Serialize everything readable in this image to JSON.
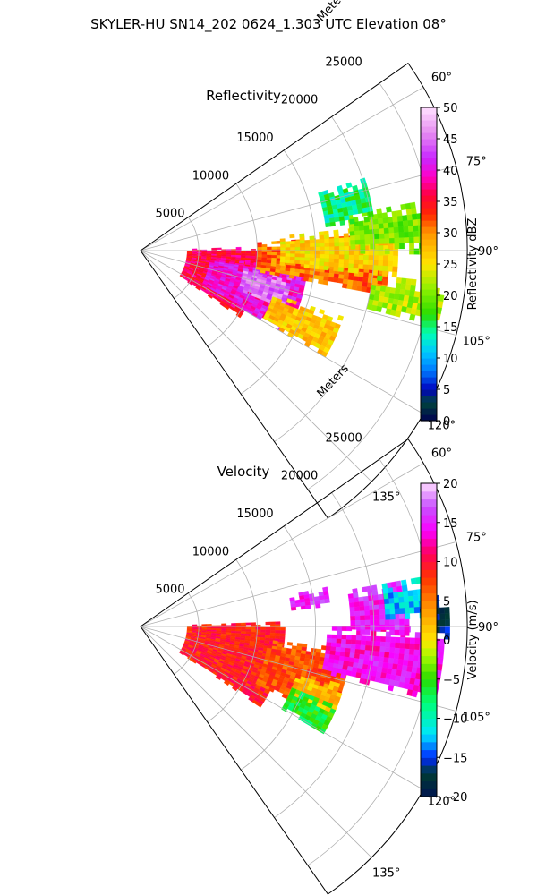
{
  "figure": {
    "suptitle": "SKYLER-HU  SN14_202  0624_1.303 UTC Elevation 08°"
  },
  "chart_data": [
    {
      "type": "heatmap",
      "title": "Reflectivity",
      "radial_label": "Meters",
      "projection": "polar sector",
      "theta_range_deg": [
        55,
        145
      ],
      "r_range_m": [
        0,
        28000
      ],
      "r_ticks": [
        5000,
        10000,
        15000,
        20000,
        25000
      ],
      "theta_ticks_deg": [
        60,
        75,
        90,
        105,
        120,
        135
      ],
      "theta_tick_labels": [
        "60°",
        "75°",
        "90°",
        "105°",
        "120°",
        "135°"
      ],
      "r_tick_labels": [
        "5000",
        "10000",
        "15000",
        "20000",
        "25000"
      ],
      "grid": true,
      "colorbar": {
        "label": "Reflectivity dBZ",
        "range": [
          0,
          50
        ],
        "ticks": [
          0,
          5,
          10,
          15,
          20,
          25,
          30,
          35,
          40,
          45,
          50
        ],
        "tick_labels": [
          "0",
          "5",
          "10",
          "15",
          "20",
          "25",
          "30",
          "35",
          "40",
          "45",
          "50"
        ],
        "levels": 50
      },
      "field_regions": [
        {
          "theta": [
            88,
            124
          ],
          "r": [
            4000,
            10000
          ],
          "value": 36
        },
        {
          "theta": [
            96,
            120
          ],
          "r": [
            6000,
            14000
          ],
          "value": 40
        },
        {
          "theta": [
            100,
            112
          ],
          "r": [
            9000,
            13000
          ],
          "value": 45
        },
        {
          "theta": [
            86,
            100
          ],
          "r": [
            10000,
            21000
          ],
          "value": 31
        },
        {
          "theta": [
            84,
            96
          ],
          "r": [
            12000,
            22000
          ],
          "value": 26
        },
        {
          "theta": [
            80,
            90
          ],
          "r": [
            18000,
            25000
          ],
          "value": 20
        },
        {
          "theta": [
            72,
            82
          ],
          "r": [
            16000,
            20000
          ],
          "value": 15
        },
        {
          "theta": [
            96,
            104
          ],
          "r": [
            20000,
            26000
          ],
          "value": 22
        },
        {
          "theta": [
            108,
            120
          ],
          "r": [
            12000,
            18000
          ],
          "value": 27
        }
      ]
    },
    {
      "type": "heatmap",
      "title": "Velocity",
      "radial_label": "Meters",
      "projection": "polar sector",
      "theta_range_deg": [
        55,
        145
      ],
      "r_range_m": [
        0,
        28000
      ],
      "r_ticks": [
        5000,
        10000,
        15000,
        20000,
        25000
      ],
      "theta_ticks_deg": [
        60,
        75,
        90,
        105,
        120,
        135
      ],
      "theta_tick_labels": [
        "60°",
        "75°",
        "90°",
        "105°",
        "120°",
        "135°"
      ],
      "r_tick_labels": [
        "5000",
        "10000",
        "15000",
        "20000",
        "25000"
      ],
      "grid": true,
      "colorbar": {
        "label": "Velocity (m/s)",
        "range": [
          -20,
          20
        ],
        "ticks": [
          -20,
          -15,
          -10,
          -5,
          0,
          5,
          10,
          15,
          20
        ],
        "tick_labels": [
          "−20",
          "−15",
          "−10",
          "−5",
          "0",
          "5",
          "10",
          "15",
          "20"
        ],
        "levels": 40
      },
      "field_regions": [
        {
          "theta": [
            88,
            124
          ],
          "r": [
            4000,
            12000
          ],
          "value": 9
        },
        {
          "theta": [
            96,
            116
          ],
          "r": [
            11000,
            18000
          ],
          "value": 7
        },
        {
          "theta": [
            106,
            118
          ],
          "r": [
            14000,
            18000
          ],
          "value": 2
        },
        {
          "theta": [
            112,
            120
          ],
          "r": [
            14000,
            18000
          ],
          "value": -6
        },
        {
          "theta": [
            90,
            104
          ],
          "r": [
            16000,
            26000
          ],
          "value": 14
        },
        {
          "theta": [
            80,
            92
          ],
          "r": [
            18000,
            23000
          ],
          "value": 15
        },
        {
          "theta": [
            80,
            88
          ],
          "r": [
            21000,
            24000
          ],
          "value": -12
        },
        {
          "theta": [
            84,
            92
          ],
          "r": [
            24000,
            26500
          ],
          "value": -17
        },
        {
          "theta": [
            78,
            84
          ],
          "r": [
            13000,
            16000
          ],
          "value": 15
        }
      ]
    }
  ]
}
